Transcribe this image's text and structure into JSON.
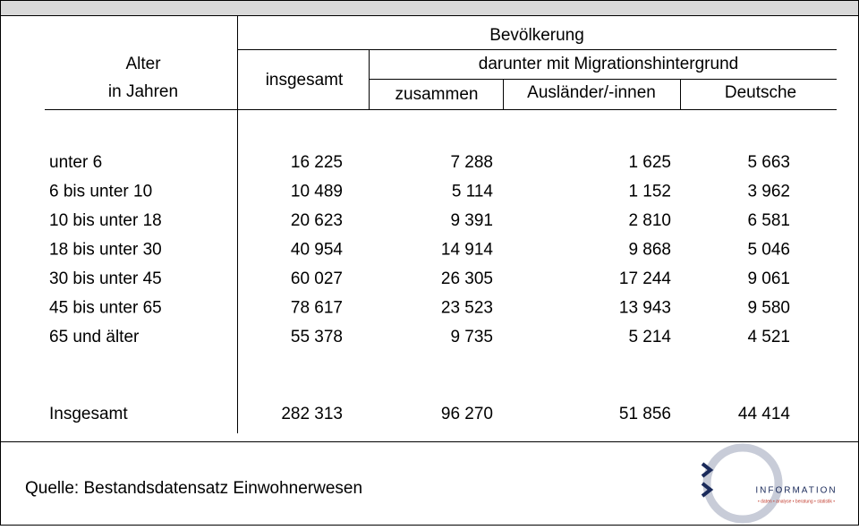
{
  "table": {
    "header": {
      "group": "Bevölkerung",
      "subgroup": "darunter mit Migrationshintergrund",
      "age": [
        "Alter",
        "in Jahren"
      ],
      "total": "insgesamt",
      "sub": [
        "zusammen",
        "Ausländer/-innen",
        "Deutsche"
      ]
    },
    "rows": [
      [
        "unter 6",
        "16 225",
        "7 288",
        "1 625",
        "5 663"
      ],
      [
        "6 bis unter 10",
        "10 489",
        "5 114",
        "1 152",
        "3 962"
      ],
      [
        "10 bis unter 18",
        "20 623",
        "9 391",
        "2 810",
        "6 581"
      ],
      [
        "18 bis unter 30",
        "40 954",
        "14 914",
        "9 868",
        "5 046"
      ],
      [
        "30 bis unter 45",
        "60 027",
        "26 305",
        "17 244",
        "9 061"
      ],
      [
        "45 bis unter 65",
        "78 617",
        "23 523",
        "13 943",
        "9 580"
      ],
      [
        "65 und älter",
        "55 378",
        "9 735",
        "5 214",
        "4 521"
      ]
    ],
    "total": [
      "Insgesamt",
      "282 313",
      "96 270",
      "51 856",
      "44 414"
    ]
  },
  "footer": {
    "source": "Quelle: Bestandsdatensatz Einwohnerwesen",
    "logo": {
      "name": "INFORMATION",
      "tagline": "• daten • analyse • beratung • statistik •"
    }
  }
}
